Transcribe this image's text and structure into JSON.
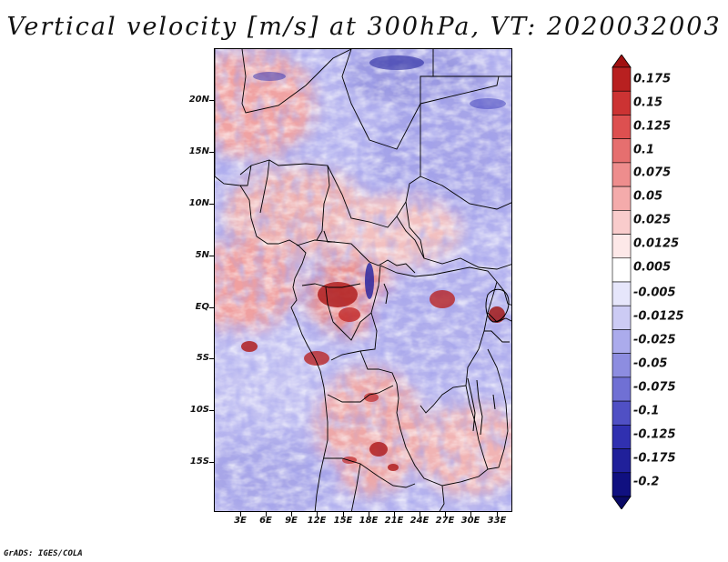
{
  "title": "Vertical velocity [m/s] at 300hPa, VT: 2020032003",
  "map": {
    "lat_labels": [
      "20N",
      "15N",
      "10N",
      "5N",
      "EQ",
      "5S",
      "10S",
      "15S"
    ],
    "lon_labels": [
      "3E",
      "6E",
      "9E",
      "12E",
      "15E",
      "18E",
      "21E",
      "24E",
      "27E",
      "30E",
      "33E"
    ]
  },
  "colorbar": {
    "labels": [
      "0.175",
      "0.15",
      "0.125",
      "0.1",
      "0.075",
      "0.05",
      "0.025",
      "0.0125",
      "0.005",
      "-0.005",
      "-0.0125",
      "-0.025",
      "-0.05",
      "-0.075",
      "-0.1",
      "-0.125",
      "-0.175",
      "-0.2"
    ],
    "colors": [
      "#a01010",
      "#b82020",
      "#cc3333",
      "#dd5050",
      "#e66f6f",
      "#ee8d8d",
      "#f4abab",
      "#f9cccc",
      "#fde8e8",
      "#ffffff",
      "#e6e6fb",
      "#cccbf4",
      "#ababec",
      "#8d8de0",
      "#7070d4",
      "#5050c4",
      "#3030b0",
      "#20209a",
      "#101080",
      "#0a0a66"
    ]
  },
  "footer": "GrADS: IGES/COLA"
}
